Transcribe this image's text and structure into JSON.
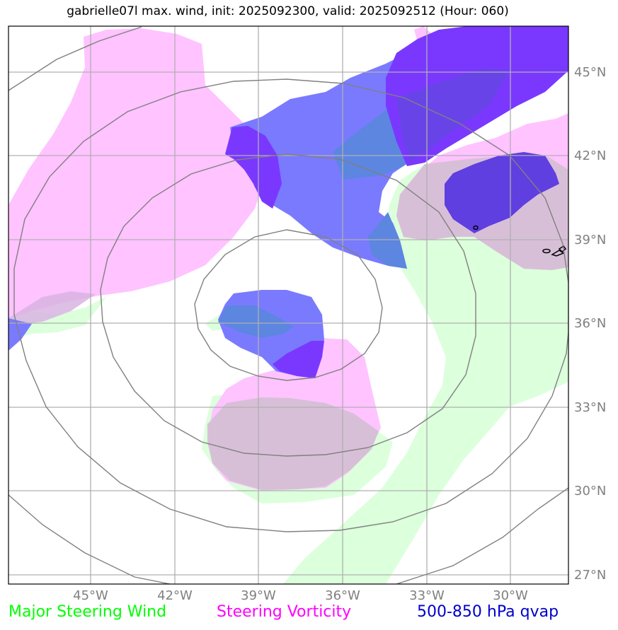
{
  "title": "gabrielle07l max. wind, init: 2025092300, valid: 2025092512 (Hour: 060)",
  "lat_ticks": [
    "45°N",
    "42°N",
    "39°N",
    "36°N",
    "33°N",
    "30°N",
    "27°N"
  ],
  "lon_ticks": [
    "45°W",
    "42°W",
    "39°W",
    "36°W",
    "33°W",
    "30°W"
  ],
  "legend": [
    {
      "label": "Major Steering Wind",
      "color": "#00ff00"
    },
    {
      "label": "Steering Vorticity",
      "color": "#ff00ff"
    },
    {
      "label": "500-850 hPa qvap",
      "color": "#0000cc"
    }
  ],
  "colors": {
    "wind_fill": "#dcffdc",
    "vorticity_fill": "#ffc3ff",
    "qvap_fill": "#6a6aff",
    "qvap_strong_fill": "#7a38ff",
    "grid": "#b0b0b0",
    "rings": "#808080"
  }
}
